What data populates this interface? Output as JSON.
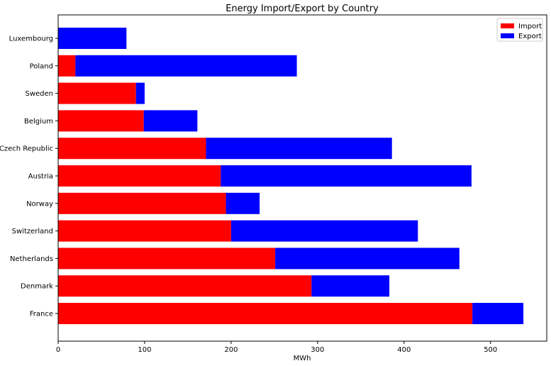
{
  "chart_data": {
    "type": "bar",
    "orientation": "horizontal",
    "stacked": true,
    "title": "Energy Import/Export by Country",
    "xlabel": "MWh",
    "ylabel": "",
    "xlim": [
      0,
      565
    ],
    "xticks": [
      0,
      100,
      200,
      300,
      400,
      500
    ],
    "grid": false,
    "legend_position": "top-right",
    "categories": [
      "Luxembourg",
      "Poland",
      "Sweden",
      "Belgium",
      "Czech Republic",
      "Austria",
      "Norway",
      "Switzerland",
      "Netherlands",
      "Denmark",
      "France"
    ],
    "series": [
      {
        "name": "Import",
        "color": "#ff0000",
        "values": [
          0,
          20,
          90,
          99,
          171,
          188,
          194,
          200,
          251,
          293,
          479
        ]
      },
      {
        "name": "Export",
        "color": "#0000ff",
        "values": [
          79,
          256,
          10,
          62,
          215,
          290,
          39,
          216,
          213,
          90,
          59
        ]
      }
    ]
  }
}
